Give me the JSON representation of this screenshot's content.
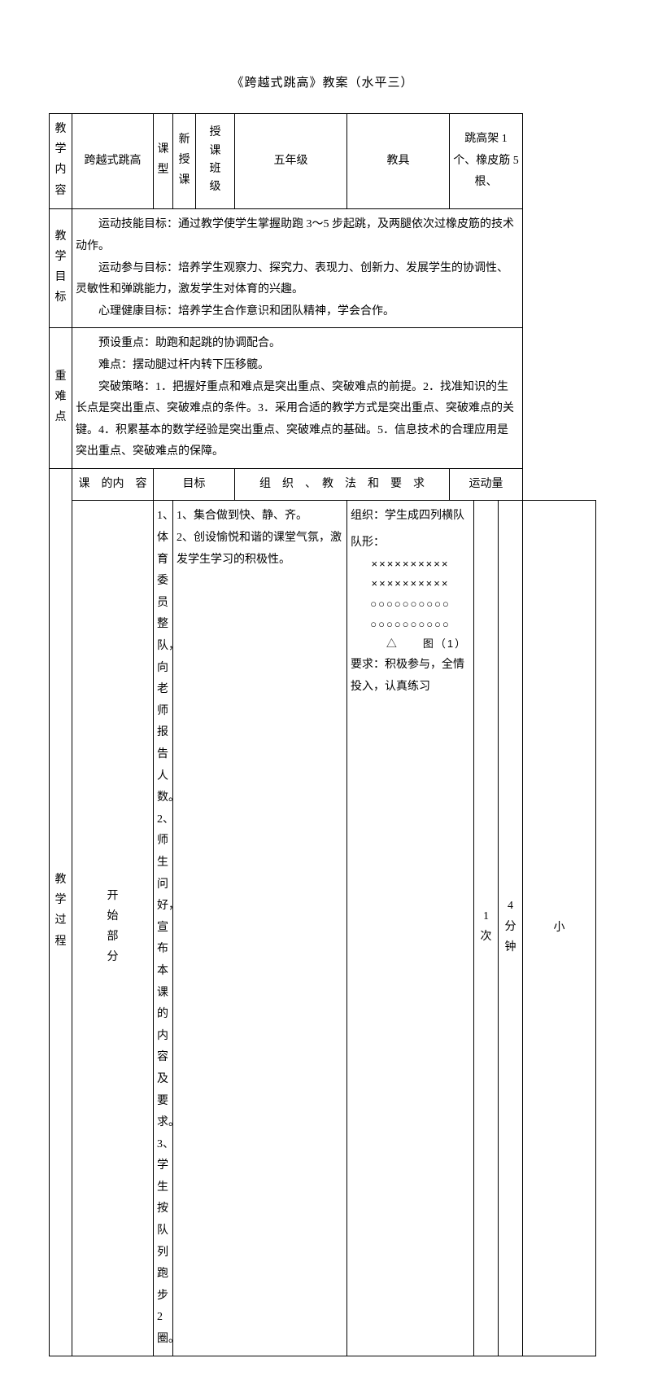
{
  "title": "《跨越式跳高》教案（水平三）",
  "row1": {
    "label": "教学内容",
    "content": "跨越式跳高",
    "typeLabel": "课型",
    "typeValue": "新授课",
    "classLabel": "授课班级",
    "classValue": "五年级",
    "equipLabel": "教具",
    "equipValue": "跳高架 1 个、橡皮筋 5 根、"
  },
  "row2": {
    "label": "教学目标",
    "p1": "运动技能目标：通过教学使学生掌握助跑 3～5 步起跳，及两腿依次过橡皮筋的技术动作。",
    "p2": "运动参与目标：培养学生观察力、探究力、表现力、创新力、发展学生的协调性、灵敏性和弹跳能力，激发学生对体育的兴趣。",
    "p3": "心理健康目标：培养学生合作意识和团队精神，学会合作。"
  },
  "row3": {
    "label": "重难点",
    "p1": "预设重点：助跑和起跳的协调配合。",
    "p2": "难点：摆动腿过杆内转下压移髋。",
    "p3": "突破策略：1．把握好重点和难点是突出重点、突破难点的前提。2．找准知识的生长点是突出重点、突破难点的条件。3．采用合适的教学方式是突出重点、突破难点的关键。4．积累基本的数学经验是突出重点、突破难点的基础。5．信息技术的合理应用是突出重点、突破难点的保障。"
  },
  "row4": {
    "procLabel": "教学过程",
    "c1": "课　的内　容",
    "c2": "目标",
    "c3": "组　织　、　教　法　和　要　求",
    "c4": "运动量"
  },
  "row5": {
    "label": "开始部分",
    "content": "1、体育委员整队，向老师报告人数。\n2、师生问好，宣布本课的内容及要求。\n3、学生按队列跑步 2 圈。",
    "goal": "1、集合做到快、静、齐。\n2、创设愉悦和谐的课堂气氛，激发学生学习的积极性。",
    "orgLabel": "组织：",
    "orgText": "学生成四列横队",
    "formLabel": "队形：",
    "formLines": [
      "××××××××××",
      "××××××××××",
      "○○○○○○○○○○",
      "○○○○○○○○○○"
    ],
    "diagMark": "△　　图（1）",
    "reqLabel": "要求：",
    "reqText": "积极参与，全情投入，认真练习",
    "times": "1次",
    "duration": "4分钟",
    "intensity": "小"
  }
}
